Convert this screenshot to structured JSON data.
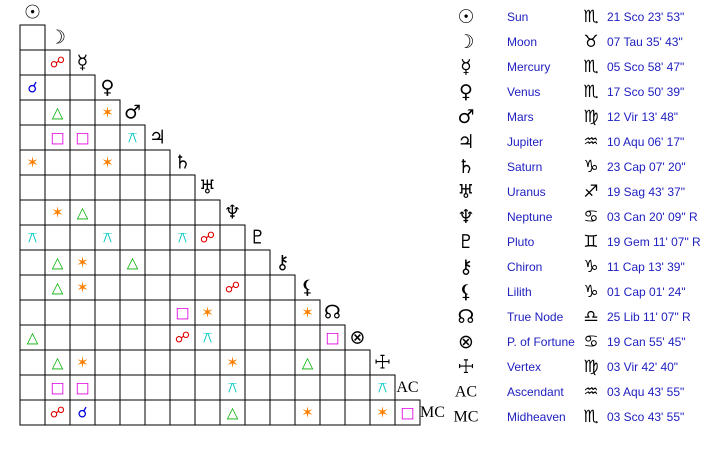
{
  "planets": [
    {
      "glyph": "☉",
      "name": "Sun",
      "sign": "♏",
      "position": "21 Sco 23' 53\""
    },
    {
      "glyph": "☽",
      "name": "Moon",
      "sign": "♉",
      "position": "07 Tau 35' 43\""
    },
    {
      "glyph": "☿",
      "name": "Mercury",
      "sign": "♏",
      "position": "05 Sco 58' 47\""
    },
    {
      "glyph": "♀",
      "name": "Venus",
      "sign": "♏",
      "position": "17 Sco 50' 39\""
    },
    {
      "glyph": "♂",
      "name": "Mars",
      "sign": "♍",
      "position": "12 Vir 13' 48\""
    },
    {
      "glyph": "♃",
      "name": "Jupiter",
      "sign": "♒",
      "position": "10 Aqu 06' 17\""
    },
    {
      "glyph": "♄",
      "name": "Saturn",
      "sign": "♑",
      "position": "23 Cap 07' 20\""
    },
    {
      "glyph": "♅",
      "name": "Uranus",
      "sign": "♐",
      "position": "19 Sag 43' 37\""
    },
    {
      "glyph": "♆",
      "name": "Neptune",
      "sign": "♋",
      "position": "03 Can 20' 09\" R"
    },
    {
      "glyph": "♇",
      "name": "Pluto",
      "sign": "♊",
      "position": "19 Gem 11' 07\" R"
    },
    {
      "glyph": "⚷",
      "name": "Chiron",
      "sign": "♑",
      "position": "11 Cap 13' 39\""
    },
    {
      "glyph": "⚸",
      "name": "Lilith",
      "sign": "♑",
      "position": "01 Cap 01' 24\""
    },
    {
      "glyph": "☊",
      "name": "True Node",
      "sign": "♎",
      "position": "25 Lib 11' 07\" R"
    },
    {
      "glyph": "⊗",
      "name": "P. of Fortune",
      "sign": "♋",
      "position": "19 Can 55' 45\""
    },
    {
      "glyph": "☩",
      "name": "Vertex",
      "sign": "♍",
      "position": "03 Vir 42' 40\""
    },
    {
      "glyph": "AC",
      "name": "Ascendant",
      "sign": "♒",
      "position": "03 Aqu 43' 55\""
    },
    {
      "glyph": "MC",
      "name": "Midheaven",
      "sign": "♏",
      "position": "03 Sco 43' 55\""
    }
  ],
  "aspect_colors": {
    "☍": "#e00000",
    "☌": "#0000dd",
    "△": "#00b000",
    "□": "#e000e0",
    "✶": "#ff8000",
    "⚻": "#00c8c8"
  },
  "grid": {
    "rows": [
      [
        null
      ],
      [
        null,
        "☍"
      ],
      [
        "☌",
        null,
        null
      ],
      [
        null,
        "△",
        null,
        "✶"
      ],
      [
        null,
        "□",
        "□",
        null,
        "⚻"
      ],
      [
        "✶",
        null,
        null,
        "✶",
        null,
        null
      ],
      [
        null,
        null,
        null,
        null,
        null,
        null,
        null
      ],
      [
        null,
        "✶",
        "△",
        null,
        null,
        null,
        null,
        null
      ],
      [
        "⚻",
        null,
        null,
        "⚻",
        null,
        null,
        "⚻",
        "☍",
        null
      ],
      [
        null,
        "△",
        "✶",
        null,
        "△",
        null,
        null,
        null,
        null,
        null
      ],
      [
        null,
        "△",
        "✶",
        null,
        null,
        null,
        null,
        null,
        "☍",
        null,
        null
      ],
      [
        null,
        null,
        null,
        null,
        null,
        null,
        "□",
        "✶",
        null,
        null,
        null,
        "✶"
      ],
      [
        "△",
        null,
        null,
        null,
        null,
        null,
        "☍",
        "⚻",
        null,
        null,
        null,
        null,
        "□"
      ],
      [
        null,
        "△",
        "✶",
        null,
        null,
        null,
        null,
        null,
        "✶",
        null,
        null,
        "△",
        null,
        null
      ],
      [
        null,
        "□",
        "□",
        null,
        null,
        null,
        null,
        null,
        "⚻",
        null,
        null,
        null,
        null,
        null,
        "⚻"
      ],
      [
        null,
        "☍",
        "☌",
        null,
        null,
        null,
        null,
        null,
        "△",
        null,
        null,
        "✶",
        null,
        null,
        "✶",
        "□"
      ]
    ]
  }
}
